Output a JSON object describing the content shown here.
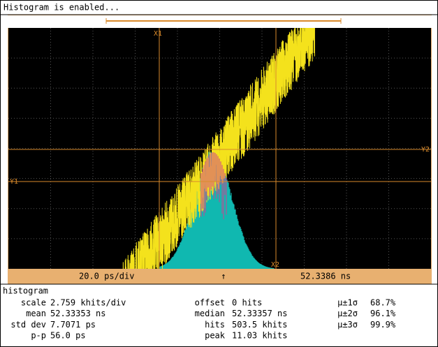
{
  "status": "Histogram is enabled...",
  "cursors": {
    "x1": "X1",
    "x2": "X2",
    "y1": "Y1",
    "y2": "Y2"
  },
  "timebase": {
    "scale": "20.0 ps/div",
    "marker": "↑",
    "position": "52.3386 ns"
  },
  "histogram": {
    "title": "histogram",
    "columns": [
      [
        {
          "label": "scale",
          "value": "2.759 khits/div"
        },
        {
          "label": "mean",
          "value": "52.33353 ns"
        },
        {
          "label": "std dev",
          "value": "7.7071 ps"
        },
        {
          "label": "p-p",
          "value": "56.0 ps"
        }
      ],
      [
        {
          "label": "offset",
          "value": "0 hits"
        },
        {
          "label": "median",
          "value": "52.33357 ns"
        },
        {
          "label": "hits",
          "value": "503.5 khits"
        },
        {
          "label": "peak",
          "value": "11.03 khits"
        }
      ],
      [
        {
          "label": "μ±1σ",
          "value": "68.7%"
        },
        {
          "label": "μ±2σ",
          "value": "96.1%"
        },
        {
          "label": "μ±3σ",
          "value": "99.9%"
        }
      ]
    ]
  }
}
